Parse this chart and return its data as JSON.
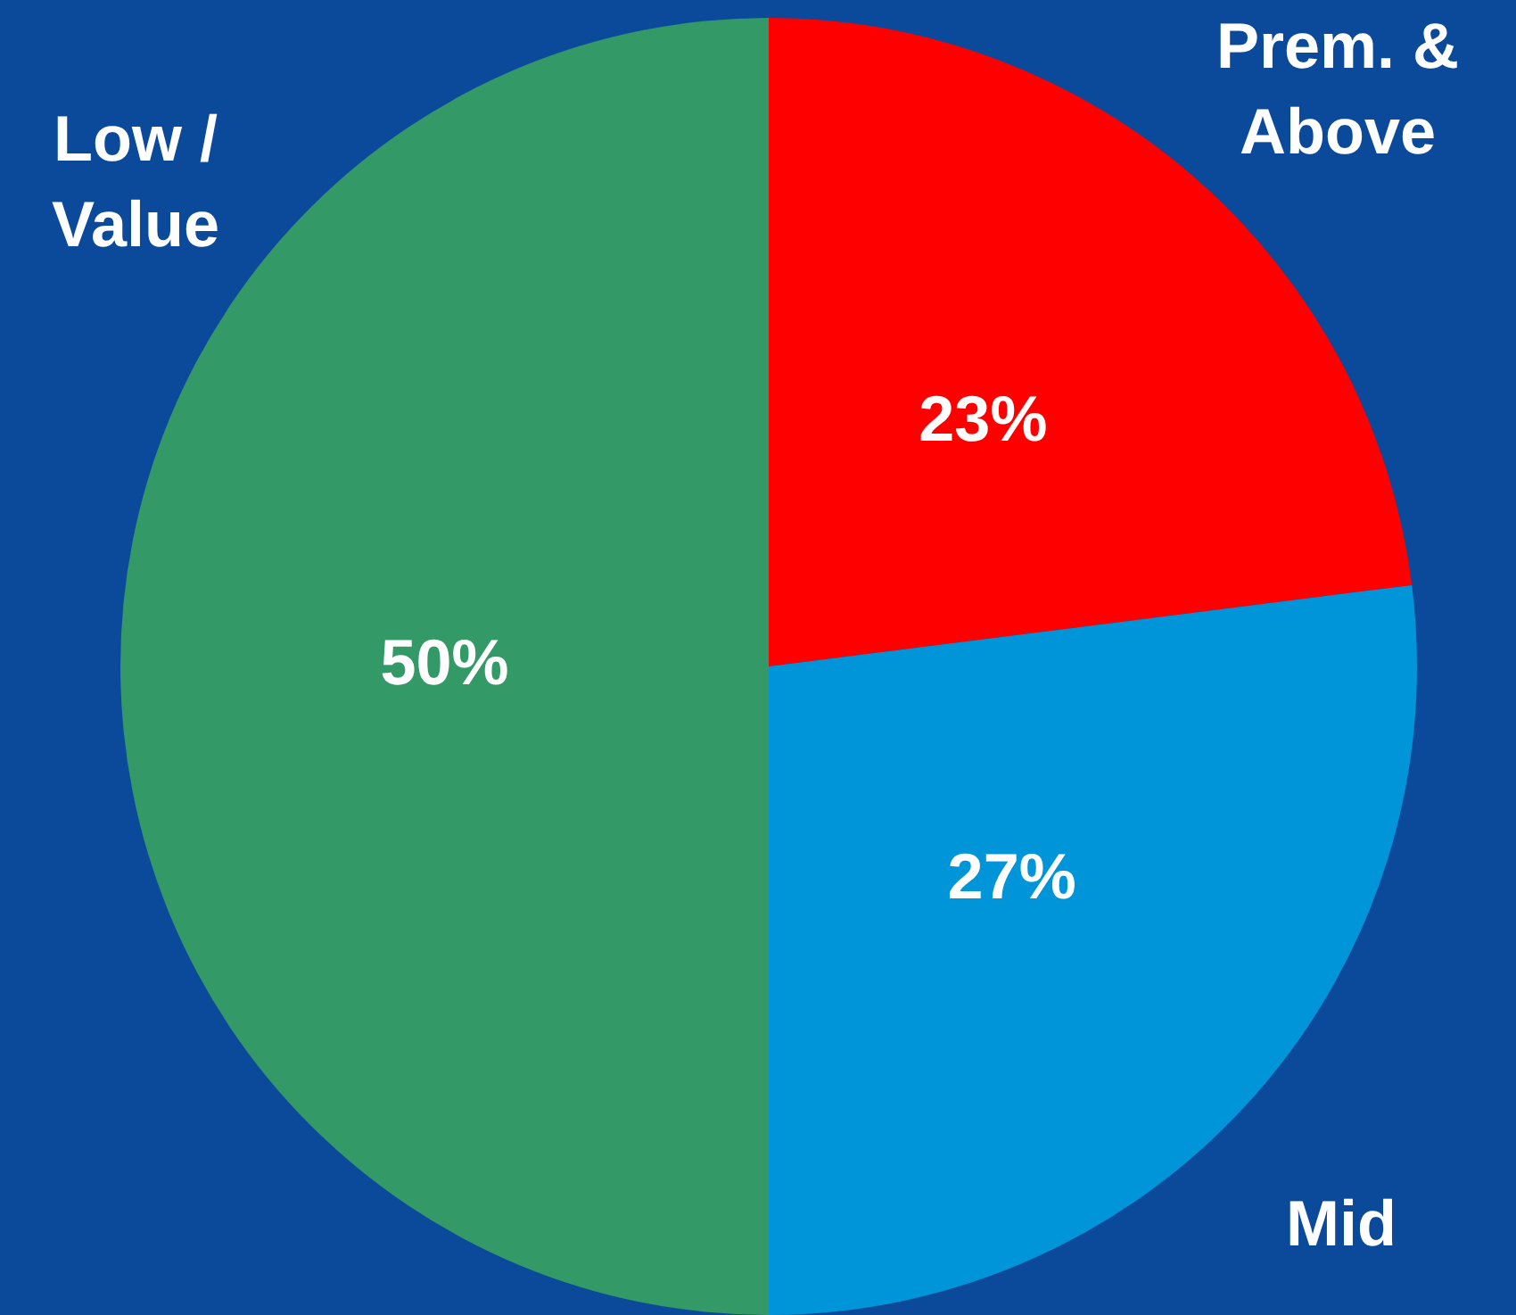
{
  "chart_data": {
    "type": "pie",
    "categories": [
      "Prem. & Above",
      "Mid",
      "Low / Value"
    ],
    "values": [
      23,
      27,
      50
    ],
    "colors": [
      "#ff0000",
      "#0094d8",
      "#339966"
    ],
    "value_labels": [
      "23%",
      "27%",
      "50%"
    ],
    "legend": false
  }
}
